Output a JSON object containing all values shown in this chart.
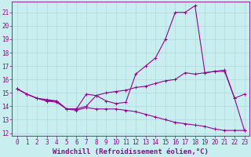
{
  "xlabel": "Windchill (Refroidissement éolien,°C)",
  "bg_color": "#c8eef0",
  "grid_color": "#b0d8da",
  "line_color": "#990099",
  "xlim": [
    -0.5,
    23.5
  ],
  "ylim": [
    11.8,
    21.8
  ],
  "xticks": [
    0,
    1,
    2,
    3,
    4,
    5,
    6,
    7,
    8,
    9,
    10,
    11,
    12,
    13,
    14,
    15,
    16,
    17,
    18,
    19,
    20,
    21,
    22,
    23
  ],
  "yticks": [
    12,
    13,
    14,
    15,
    16,
    17,
    18,
    19,
    20,
    21
  ],
  "line1_x": [
    0,
    1,
    2,
    3,
    4,
    5,
    6,
    7,
    8,
    9,
    10,
    11,
    12,
    13,
    14,
    15,
    16,
    17,
    18,
    19,
    20,
    21,
    22,
    23
  ],
  "line1_y": [
    15.3,
    14.9,
    14.6,
    14.5,
    14.4,
    13.8,
    13.8,
    14.9,
    14.8,
    14.4,
    14.2,
    14.3,
    16.4,
    17.0,
    17.6,
    19.0,
    21.0,
    21.0,
    21.5,
    16.5,
    16.6,
    16.7,
    14.6,
    14.9
  ],
  "line2_x": [
    0,
    1,
    2,
    3,
    4,
    5,
    6,
    7,
    8,
    9,
    10,
    11,
    12,
    13,
    14,
    15,
    16,
    17,
    18,
    19,
    20,
    21,
    22,
    23
  ],
  "line2_y": [
    15.3,
    14.9,
    14.6,
    14.4,
    14.4,
    13.8,
    13.8,
    14.0,
    14.8,
    15.0,
    15.1,
    15.2,
    15.4,
    15.5,
    15.7,
    15.9,
    16.0,
    16.5,
    16.4,
    16.5,
    16.6,
    16.6,
    14.6,
    12.2
  ],
  "line3_x": [
    0,
    1,
    2,
    3,
    4,
    5,
    6,
    7,
    8,
    9,
    10,
    11,
    12,
    13,
    14,
    15,
    16,
    17,
    18,
    19,
    20,
    21,
    22,
    23
  ],
  "line3_y": [
    15.3,
    14.9,
    14.6,
    14.4,
    14.3,
    13.8,
    13.7,
    13.9,
    13.8,
    13.8,
    13.8,
    13.7,
    13.6,
    13.4,
    13.2,
    13.0,
    12.8,
    12.7,
    12.6,
    12.5,
    12.3,
    12.2,
    12.2,
    12.2
  ],
  "marker": "+",
  "markersize": 3,
  "linewidth": 0.8,
  "tick_fontsize": 5.5,
  "label_fontsize": 6.5
}
